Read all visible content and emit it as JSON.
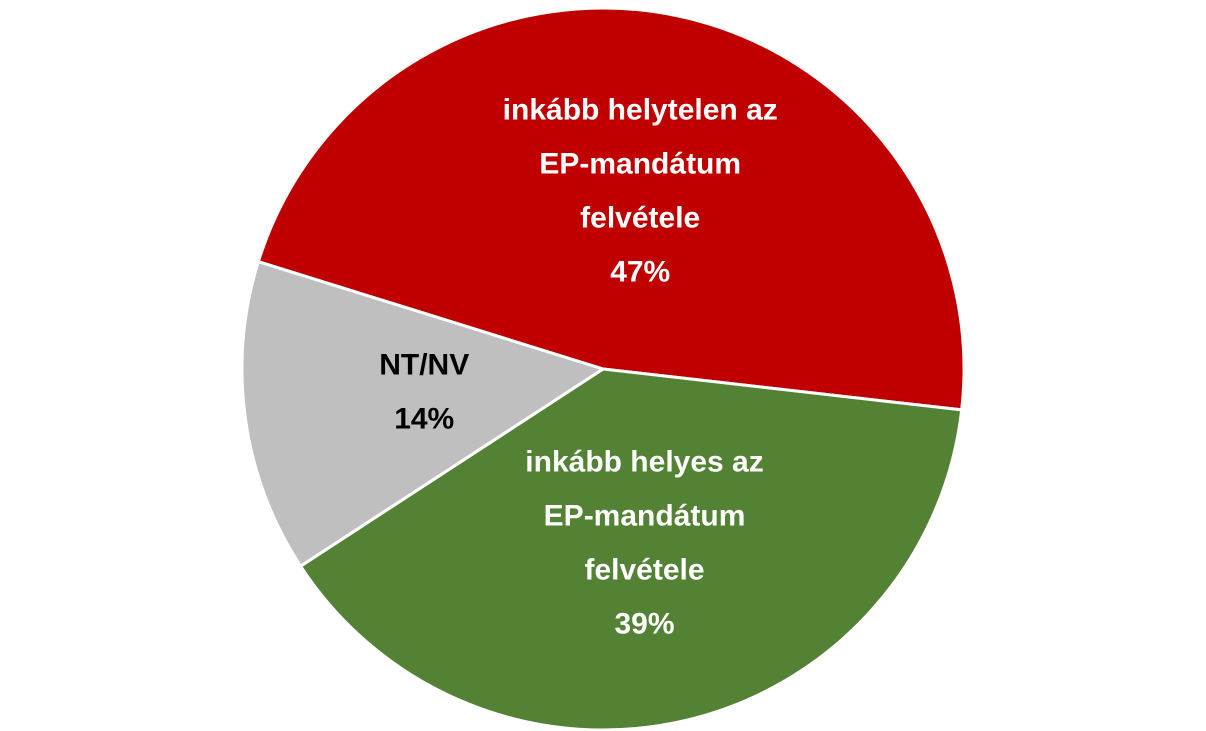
{
  "chart_data": {
    "type": "pie",
    "categories": [
      [
        "inkább helytelen az",
        "EP-mandátum",
        "felvétele"
      ],
      [
        "inkább helyes az",
        "EP-mandátum",
        "felvétele"
      ],
      [
        "NT/NV"
      ]
    ],
    "values": [
      47,
      39,
      14
    ],
    "value_labels": [
      "47%",
      "39%",
      "14%"
    ],
    "colors": [
      "#c00000",
      "#548235",
      "#bfbfbf"
    ],
    "label_colors": [
      "#ffffff",
      "#ffffff",
      "#000000"
    ]
  }
}
